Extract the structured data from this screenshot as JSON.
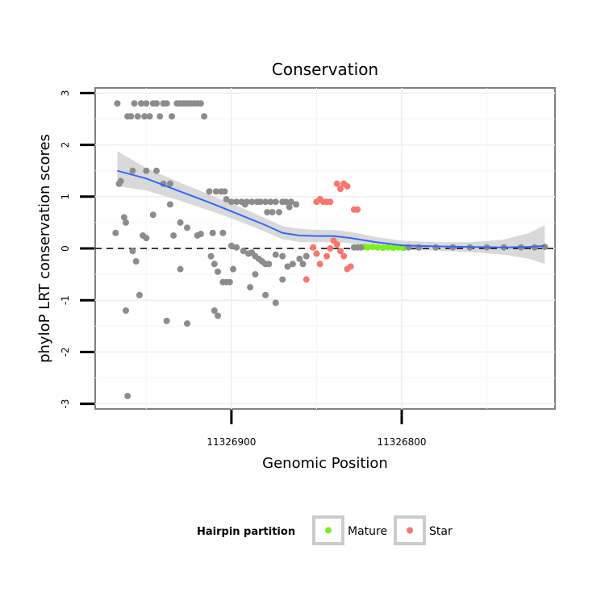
{
  "chart_data": {
    "type": "scatter",
    "title": "Conservation",
    "xlabel": "Genomic Position",
    "ylabel": "phyloP LRT conservation scores",
    "x_reversed": true,
    "xlim": [
      11326980,
      11326710
    ],
    "ylim": [
      -3.1,
      3.1
    ],
    "x_ticks": [
      11326900,
      11326800
    ],
    "x_tick_labels": [
      "11326900",
      "11326800"
    ],
    "y_ticks": [
      -3,
      -2,
      -1,
      0,
      1,
      2,
      3
    ],
    "y_tick_labels": [
      "-3",
      "-2",
      "-1",
      "0",
      "1",
      "2",
      "3"
    ],
    "reference_line": {
      "y": 0,
      "style": "dashed",
      "color": "#000000"
    },
    "series": [
      {
        "name": "Other",
        "color": "#8c8c8c",
        "in_legend": false,
        "points": [
          [
            11326967,
            2.8
          ],
          [
            11326961,
            2.55
          ],
          [
            11326959,
            2.55
          ],
          [
            11326957,
            2.8
          ],
          [
            11326955,
            2.55
          ],
          [
            11326953,
            2.8
          ],
          [
            11326951,
            2.55
          ],
          [
            11326950,
            2.8
          ],
          [
            11326948,
            2.55
          ],
          [
            11326946,
            2.8
          ],
          [
            11326944,
            2.8
          ],
          [
            11326942,
            2.55
          ],
          [
            11326940,
            2.8
          ],
          [
            11326938,
            2.8
          ],
          [
            11326935,
            2.55
          ],
          [
            11326932,
            2.8
          ],
          [
            11326930,
            2.8
          ],
          [
            11326928,
            2.8
          ],
          [
            11326926,
            2.8
          ],
          [
            11326924,
            2.8
          ],
          [
            11326922,
            2.8
          ],
          [
            11326920,
            2.8
          ],
          [
            11326918,
            2.8
          ],
          [
            11326916,
            2.55
          ],
          [
            11326958,
            1.5
          ],
          [
            11326950,
            1.5
          ],
          [
            11326944,
            1.5
          ],
          [
            11326966,
            1.25
          ],
          [
            11326940,
            1.25
          ],
          [
            11326936,
            1.25
          ],
          [
            11326965,
            1.3
          ],
          [
            11326913,
            1.1
          ],
          [
            11326909,
            1.1
          ],
          [
            11326906,
            1.1
          ],
          [
            11326904,
            1.1
          ],
          [
            11326900,
            0.9
          ],
          [
            11326897,
            0.9
          ],
          [
            11326894,
            0.9
          ],
          [
            11326891,
            0.9
          ],
          [
            11326888,
            0.9
          ],
          [
            11326885,
            0.9
          ],
          [
            11326883,
            0.9
          ],
          [
            11326880,
            0.9
          ],
          [
            11326877,
            0.9
          ],
          [
            11326874,
            0.9
          ],
          [
            11326870,
            0.9
          ],
          [
            11326868,
            0.9
          ],
          [
            11326865,
            0.9
          ],
          [
            11326903,
            0.95
          ],
          [
            11326892,
            0.85
          ],
          [
            11326879,
            0.7
          ],
          [
            11326876,
            0.7
          ],
          [
            11326872,
            0.7
          ],
          [
            11326866,
            0.8
          ],
          [
            11326862,
            0.85
          ],
          [
            11326963,
            0.6
          ],
          [
            11326962,
            0.5
          ],
          [
            11326946,
            0.65
          ],
          [
            11326936,
            0.85
          ],
          [
            11326930,
            0.5
          ],
          [
            11326926,
            0.4
          ],
          [
            11326911,
            0.3
          ],
          [
            11326918,
            0.28
          ],
          [
            11326905,
            0.3
          ],
          [
            11326968,
            0.3
          ],
          [
            11326952,
            0.25
          ],
          [
            11326950,
            0.2
          ],
          [
            11326934,
            0.25
          ],
          [
            11326920,
            0.25
          ],
          [
            11326900,
            0.05
          ],
          [
            11326897,
            0.02
          ],
          [
            11326893,
            -0.05
          ],
          [
            11326890,
            -0.1
          ],
          [
            11326888,
            -0.08
          ],
          [
            11326886,
            -0.15
          ],
          [
            11326884,
            -0.2
          ],
          [
            11326882,
            -0.25
          ],
          [
            11326880,
            -0.3
          ],
          [
            11326878,
            -0.3
          ],
          [
            11326874,
            -0.12
          ],
          [
            11326870,
            -0.15
          ],
          [
            11326867,
            -0.35
          ],
          [
            11326864,
            -0.3
          ],
          [
            11326860,
            -0.2
          ],
          [
            11326858,
            -0.3
          ],
          [
            11326856,
            -0.15
          ],
          [
            11326958,
            -0.05
          ],
          [
            11326956,
            -0.25
          ],
          [
            11326930,
            -0.4
          ],
          [
            11326912,
            -0.15
          ],
          [
            11326910,
            -0.3
          ],
          [
            11326908,
            -0.45
          ],
          [
            11326899,
            -0.4
          ],
          [
            11326886,
            -0.5
          ],
          [
            11326870,
            -0.6
          ],
          [
            11326905,
            -0.65
          ],
          [
            11326903,
            -0.65
          ],
          [
            11326901,
            -0.65
          ],
          [
            11326889,
            -0.75
          ],
          [
            11326880,
            -0.9
          ],
          [
            11326874,
            -1.05
          ],
          [
            11326954,
            -0.9
          ],
          [
            11326962,
            -1.2
          ],
          [
            11326910,
            -1.2
          ],
          [
            11326908,
            -1.3
          ],
          [
            11326938,
            -1.4
          ],
          [
            11326926,
            -1.45
          ],
          [
            11326961,
            -2.85
          ]
        ]
      },
      {
        "name": "Star",
        "color": "#f8766d",
        "in_legend": true,
        "points": [
          [
            11326850,
            0.9
          ],
          [
            11326848,
            0.95
          ],
          [
            11326846,
            0.9
          ],
          [
            11326844,
            0.9
          ],
          [
            11326842,
            0.9
          ],
          [
            11326838,
            1.25
          ],
          [
            11326836,
            1.15
          ],
          [
            11326834,
            1.25
          ],
          [
            11326832,
            1.2
          ],
          [
            11326828,
            0.75
          ],
          [
            11326826,
            0.75
          ],
          [
            11326840,
            0.15
          ],
          [
            11326838,
            0.08
          ],
          [
            11326842,
            0.0
          ],
          [
            11326852,
            0.02
          ],
          [
            11326850,
            -0.1
          ],
          [
            11326848,
            -0.3
          ],
          [
            11326844,
            -0.15
          ],
          [
            11326836,
            -0.05
          ],
          [
            11326834,
            -0.15
          ],
          [
            11326830,
            -0.35
          ],
          [
            11326832,
            -0.4
          ],
          [
            11326856,
            -0.6
          ]
        ]
      },
      {
        "name": "Mature",
        "color": "#7cf01c",
        "in_legend": true,
        "points": [
          [
            11326822,
            0.03
          ],
          [
            11326820,
            0.02
          ],
          [
            11326817,
            0.03
          ],
          [
            11326814,
            0.02
          ],
          [
            11326811,
            0.01
          ],
          [
            11326808,
            0.02
          ],
          [
            11326805,
            0.01
          ],
          [
            11326802,
            0.02
          ],
          [
            11326799,
            0.01
          ]
        ]
      },
      {
        "name": "Baseline",
        "color": "#8c8c8c",
        "in_legend": false,
        "points": [
          [
            11326828,
            0.02
          ],
          [
            11326826,
            0.02
          ],
          [
            11326824,
            0.02
          ],
          [
            11326796,
            0.02
          ],
          [
            11326790,
            0.02
          ],
          [
            11326780,
            0.02
          ],
          [
            11326770,
            0.02
          ],
          [
            11326760,
            0.02
          ],
          [
            11326750,
            0.02
          ],
          [
            11326740,
            0.02
          ],
          [
            11326730,
            0.02
          ],
          [
            11326722,
            0.02
          ],
          [
            11326716,
            0.03
          ]
        ]
      }
    ],
    "smooth": {
      "color": "#3366ff",
      "band_color": "#cccccc",
      "points": [
        [
          11326967,
          1.5
        ],
        [
          11326950,
          1.35
        ],
        [
          11326930,
          1.1
        ],
        [
          11326910,
          0.85
        ],
        [
          11326895,
          0.65
        ],
        [
          11326880,
          0.45
        ],
        [
          11326870,
          0.3
        ],
        [
          11326860,
          0.25
        ],
        [
          11326850,
          0.24
        ],
        [
          11326840,
          0.24
        ],
        [
          11326830,
          0.2
        ],
        [
          11326815,
          0.12
        ],
        [
          11326800,
          0.06
        ],
        [
          11326780,
          0.04
        ],
        [
          11326760,
          0.03
        ],
        [
          11326740,
          0.02
        ],
        [
          11326725,
          0.03
        ],
        [
          11326716,
          0.05
        ]
      ],
      "band": [
        [
          11326967,
          1.88,
          1.2
        ],
        [
          11326950,
          1.55,
          1.12
        ],
        [
          11326930,
          1.27,
          0.92
        ],
        [
          11326910,
          1.0,
          0.7
        ],
        [
          11326895,
          0.8,
          0.52
        ],
        [
          11326880,
          0.58,
          0.32
        ],
        [
          11326870,
          0.43,
          0.18
        ],
        [
          11326860,
          0.38,
          0.12
        ],
        [
          11326850,
          0.36,
          0.12
        ],
        [
          11326840,
          0.36,
          0.12
        ],
        [
          11326830,
          0.32,
          0.1
        ],
        [
          11326815,
          0.22,
          0.03
        ],
        [
          11326800,
          0.15,
          -0.03
        ],
        [
          11326780,
          0.12,
          -0.04
        ],
        [
          11326760,
          0.12,
          -0.07
        ],
        [
          11326740,
          0.17,
          -0.12
        ],
        [
          11326725,
          0.3,
          -0.2
        ],
        [
          11326716,
          0.45,
          -0.3
        ]
      ]
    },
    "legend": {
      "title": "Hairpin partition",
      "position": "bottom",
      "entries": [
        {
          "label": "Mature",
          "color": "#7cf01c"
        },
        {
          "label": "Star",
          "color": "#f8766d"
        }
      ]
    }
  }
}
